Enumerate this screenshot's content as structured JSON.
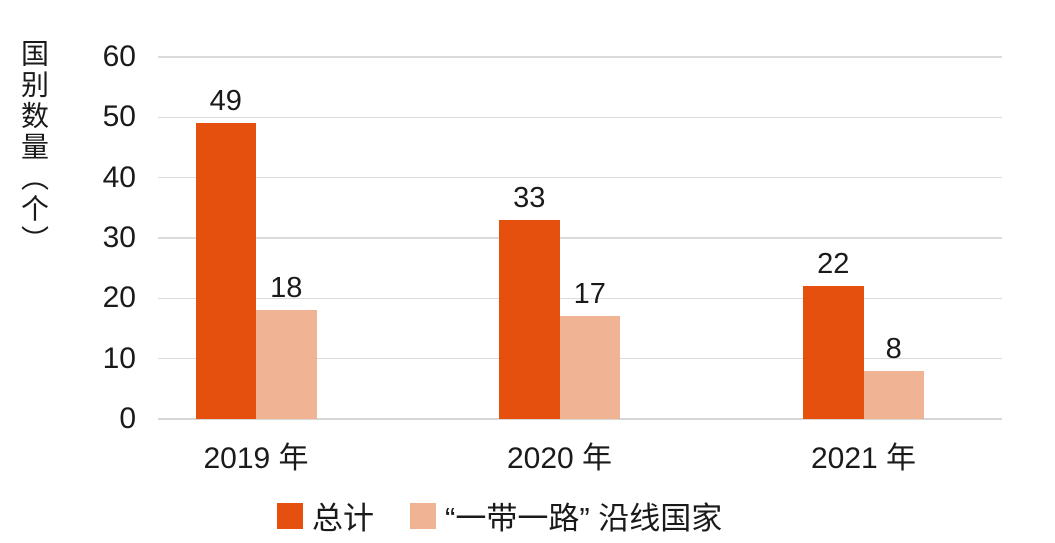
{
  "chart_data": {
    "type": "bar",
    "title": "",
    "ylabel": "国别数量（个）",
    "xlabel": "",
    "categories": [
      "2019 年",
      "2020 年",
      "2021 年"
    ],
    "series": [
      {
        "name": "总计",
        "color": "#e5500f",
        "values": [
          49,
          33,
          22
        ]
      },
      {
        "name": "“一带一路” 沿线国家",
        "color": "#f0b494",
        "values": [
          18,
          17,
          8
        ]
      }
    ],
    "value_labels_shown": true,
    "ylim": [
      0,
      60
    ],
    "yticks": [
      0,
      10,
      20,
      30,
      40,
      50,
      60
    ],
    "grid": "horizontal",
    "legend_position": "bottom",
    "colors": {
      "grid": "#dbdbdb",
      "axis_line": "#d6d6d6",
      "text": "#1a1a1a",
      "background": "#ffffff"
    }
  }
}
